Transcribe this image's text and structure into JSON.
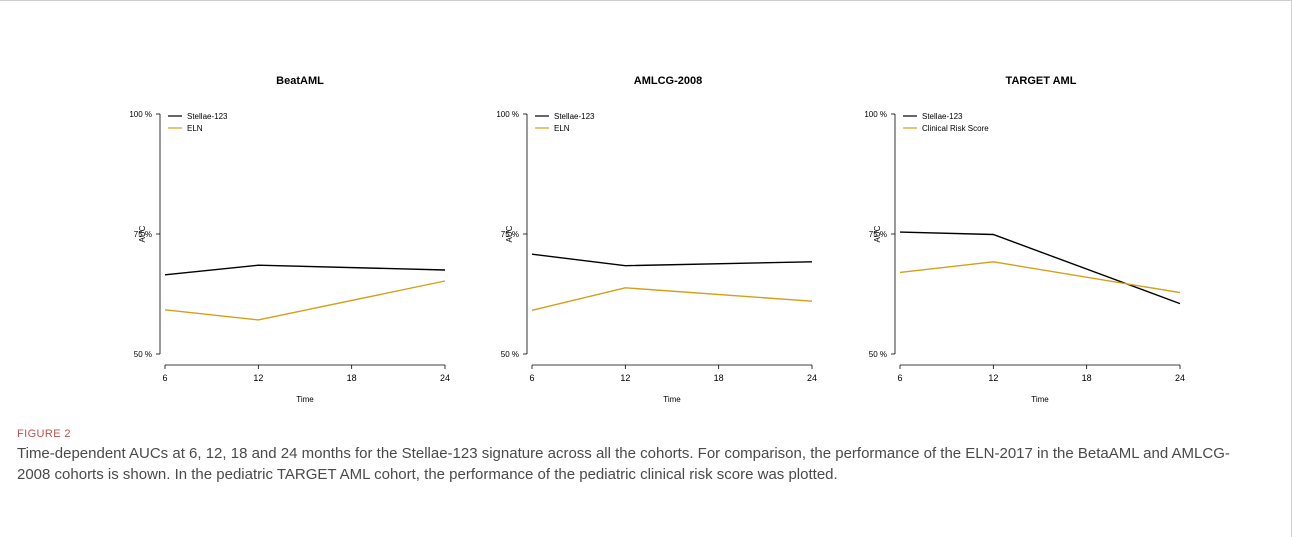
{
  "figure": {
    "label": "FIGURE 2",
    "caption": "Time-dependent AUCs at 6, 12, 18 and 24 months for the Stellae-123 signature across all the cohorts. For comparison, the performance of the ELN-2017 in the BetaAML and AMLCG-2008 cohorts is shown. In the pediatric TARGET AML cohort, the performance of the pediatric clinical risk score was plotted."
  },
  "colors": {
    "stellae": "#000000",
    "comparator": "#d4a017"
  },
  "chart_data": [
    {
      "type": "line",
      "title": "BeatAML",
      "xlabel": "Time",
      "ylabel": "AUC",
      "x": [
        6,
        12,
        18,
        24
      ],
      "x_ticks": [
        "6",
        "12",
        "18",
        "24"
      ],
      "y_ticks": [
        "50 %",
        "75 %",
        "100 %"
      ],
      "ylim": [
        50,
        100
      ],
      "xlim": [
        6,
        24
      ],
      "grid": false,
      "legend_position": "top-left",
      "series": [
        {
          "name": "Stellae-123",
          "x": [
            6,
            12,
            24
          ],
          "values": [
            66.5,
            68.5,
            67.5
          ]
        },
        {
          "name": "ELN",
          "x": [
            6,
            12,
            24
          ],
          "values": [
            59.2,
            57.1,
            65.2
          ]
        }
      ]
    },
    {
      "type": "line",
      "title": "AMLCG-2008",
      "xlabel": "Time",
      "ylabel": "AUC",
      "x": [
        6,
        12,
        18,
        24
      ],
      "x_ticks": [
        "6",
        "12",
        "18",
        "24"
      ],
      "y_ticks": [
        "50 %",
        "75 %",
        "100 %"
      ],
      "ylim": [
        50,
        100
      ],
      "xlim": [
        6,
        24
      ],
      "grid": false,
      "legend_position": "top-left",
      "series": [
        {
          "name": "Stellae-123",
          "x": [
            6,
            12,
            24
          ],
          "values": [
            70.8,
            68.4,
            69.2
          ]
        },
        {
          "name": "ELN",
          "x": [
            6,
            12,
            24
          ],
          "values": [
            59.1,
            63.8,
            61.0
          ]
        }
      ]
    },
    {
      "type": "line",
      "title": "TARGET AML",
      "xlabel": "Time",
      "ylabel": "AUC",
      "x": [
        6,
        12,
        18,
        24
      ],
      "x_ticks": [
        "6",
        "12",
        "18",
        "24"
      ],
      "y_ticks": [
        "50 %",
        "75 %",
        "100 %"
      ],
      "ylim": [
        50,
        100
      ],
      "xlim": [
        6,
        24
      ],
      "grid": false,
      "legend_position": "top-left",
      "series": [
        {
          "name": "Stellae-123",
          "x": [
            6,
            12,
            24
          ],
          "values": [
            75.4,
            74.9,
            60.5
          ]
        },
        {
          "name": "Clinical Risk Score",
          "x": [
            6,
            12,
            24
          ],
          "values": [
            67.0,
            69.2,
            62.8
          ]
        }
      ]
    }
  ]
}
